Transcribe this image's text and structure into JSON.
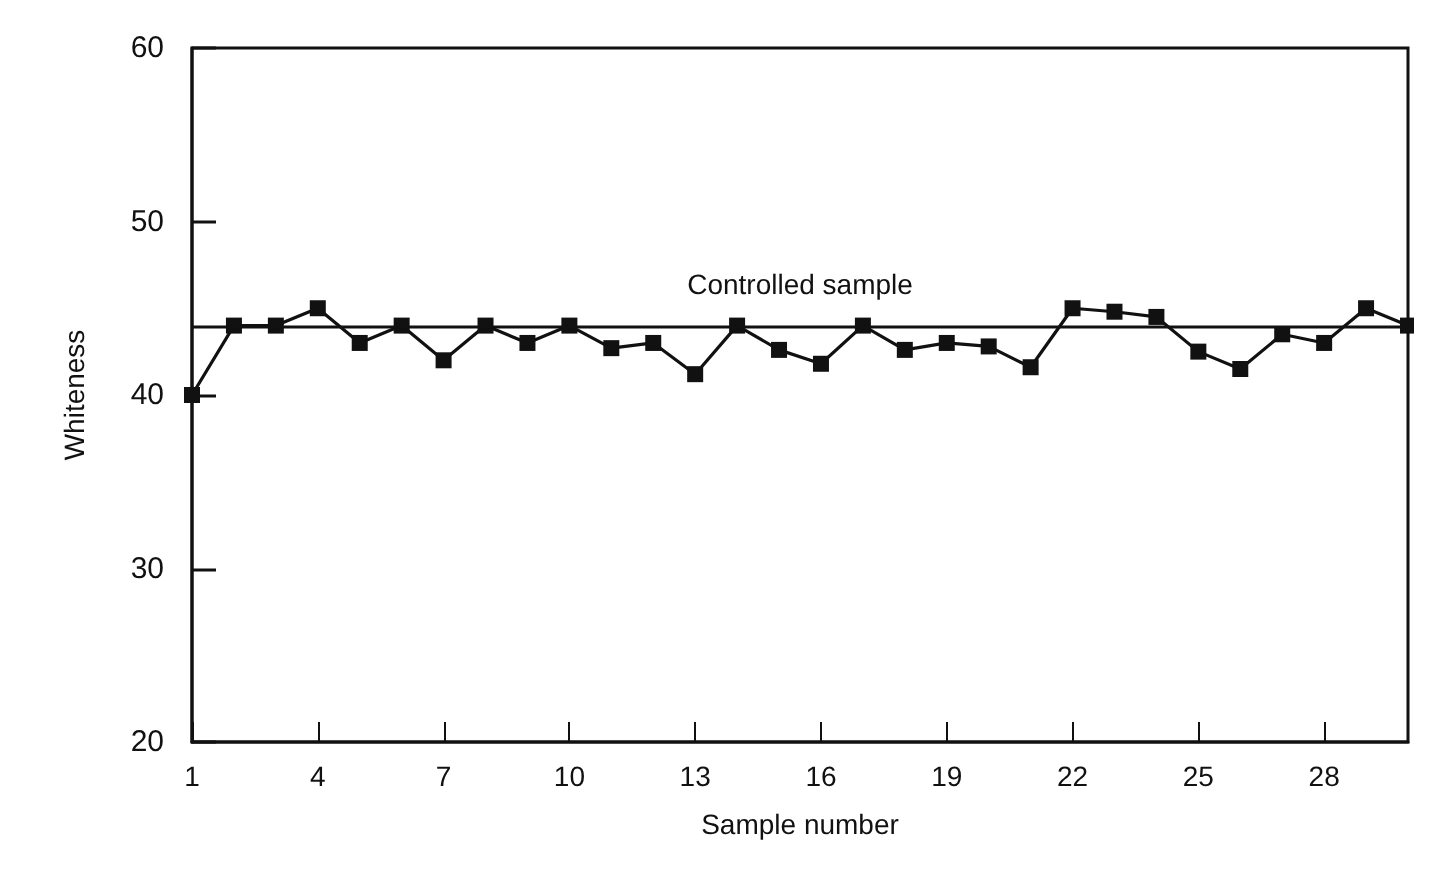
{
  "chart_data": {
    "type": "line",
    "xlabel": "Sample number",
    "ylabel": "Whiteness",
    "x": [
      1,
      2,
      3,
      4,
      5,
      6,
      7,
      8,
      9,
      10,
      11,
      12,
      13,
      14,
      15,
      16,
      17,
      18,
      19,
      20,
      21,
      22,
      23,
      24,
      25,
      26,
      27,
      28,
      29,
      30
    ],
    "series": [
      {
        "color": "#111111",
        "values": [
          40,
          44,
          44,
          45,
          43,
          44,
          42,
          44,
          43,
          44,
          42.7,
          43,
          41.2,
          44,
          42.6,
          41.8,
          44,
          42.6,
          43,
          42.8,
          41.6,
          45,
          44.8,
          44.5,
          42.5,
          41.5,
          43.5,
          43,
          45,
          44
        ]
      }
    ],
    "xlim": [
      1,
      30
    ],
    "xticks": [
      1,
      4,
      7,
      10,
      13,
      16,
      19,
      22,
      25,
      28
    ],
    "ylim": [
      20,
      60
    ],
    "yticks": [
      20,
      30,
      40,
      50,
      60
    ],
    "ref_lines": [
      {
        "axis": "y",
        "value": 44,
        "label": "Controlled sample",
        "color": "#111111"
      }
    ],
    "marker": "square",
    "line_style": "solid"
  }
}
